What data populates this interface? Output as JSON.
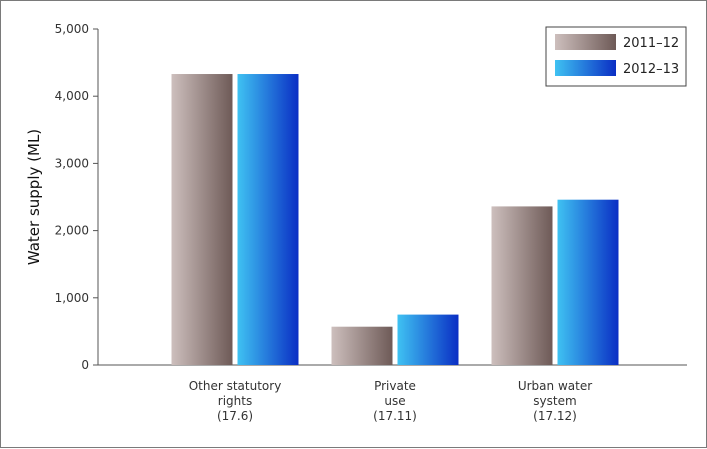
{
  "chart_data": {
    "type": "bar",
    "title": "",
    "xlabel": "",
    "ylabel": "Water supply (ML)",
    "ylim": [
      0,
      5000
    ],
    "yticks": [
      0,
      1000,
      2000,
      3000,
      4000,
      5000
    ],
    "ytick_labels": [
      "0",
      "1,000",
      "2,000",
      "3,000",
      "4,000",
      "5,000"
    ],
    "categories": [
      [
        "Other statutory",
        "rights",
        "(17.6)"
      ],
      [
        "Private",
        "use",
        "(17.11)"
      ],
      [
        "Urban water",
        "system",
        "(17.12)"
      ]
    ],
    "series": [
      {
        "name": "2011–12",
        "values": [
          4330,
          570,
          2360
        ],
        "color_start": "#cdbfbd",
        "color_end": "#6e5a57"
      },
      {
        "name": "2012–13",
        "values": [
          4330,
          750,
          2460
        ],
        "color_start": "#3fc2f2",
        "color_end": "#0a2ec4"
      }
    ],
    "legend_position": "top-right",
    "grid": false
  }
}
